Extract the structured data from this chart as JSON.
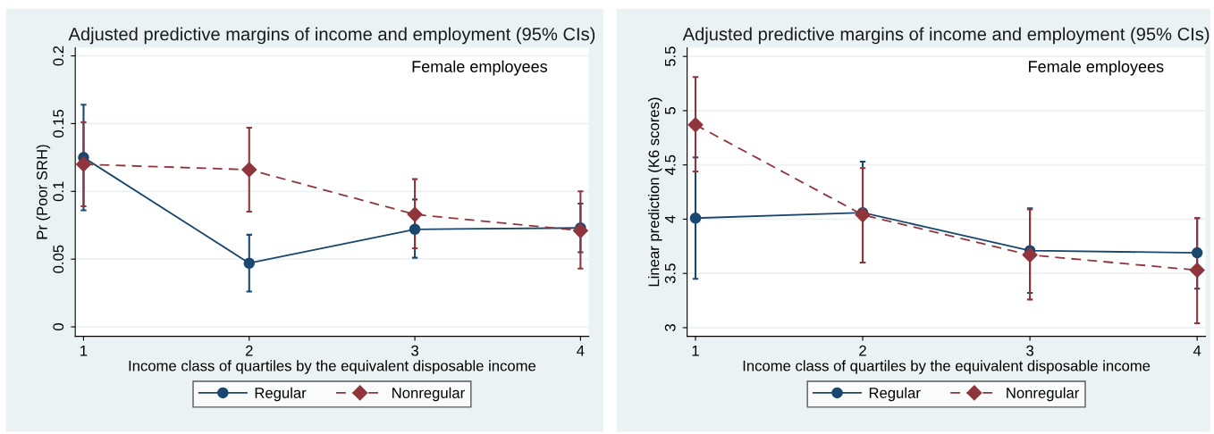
{
  "chart_data": [
    {
      "type": "line",
      "title": "Adjusted predictive margins of income and employment (95% CIs)",
      "xlabel": "Income class of quartiles by the equivalent disposable income",
      "ylabel": "Pr (Poor SRH)",
      "annotations": [
        "Female employees"
      ],
      "x": [
        1,
        2,
        3,
        4
      ],
      "xlim": [
        0.95,
        4.05
      ],
      "xticks": [
        1,
        2,
        3,
        4
      ],
      "ylim": [
        -0.007,
        0.206
      ],
      "yticks": [
        0,
        0.05,
        0.1,
        0.15,
        0.2
      ],
      "grid": "y",
      "legend": "bottom",
      "series": [
        {
          "name": "Regular",
          "color": "#1a476f",
          "marker": "circle",
          "line_style": "solid",
          "values": [
            0.125,
            0.047,
            0.072,
            0.073
          ],
          "errors": [
            [
              0.086,
              0.164
            ],
            [
              0.026,
              0.068
            ],
            [
              0.051,
              0.094
            ],
            [
              0.055,
              0.091
            ]
          ]
        },
        {
          "name": "Nonregular",
          "color": "#90353b",
          "marker": "diamond",
          "line_style": "dashed",
          "values": [
            0.12,
            0.116,
            0.083,
            0.071
          ],
          "errors": [
            [
              0.089,
              0.151
            ],
            [
              0.085,
              0.147
            ],
            [
              0.058,
              0.109
            ],
            [
              0.043,
              0.1
            ]
          ]
        }
      ]
    },
    {
      "type": "line",
      "title": "Adjusted predictive margins of income and employment (95% CIs)",
      "xlabel": "Income class of quartiles by the equivalent disposable income",
      "ylabel": "Linear prediction (K6 scores)",
      "annotations": [
        "Female employees"
      ],
      "x": [
        1,
        2,
        3,
        4
      ],
      "xlim": [
        0.95,
        4.05
      ],
      "xticks": [
        1,
        2,
        3,
        4
      ],
      "ylim": [
        2.92,
        5.58
      ],
      "yticks": [
        3,
        3.5,
        4,
        4.5,
        5,
        5.5
      ],
      "grid": "y",
      "legend": "bottom",
      "series": [
        {
          "name": "Regular",
          "color": "#1a476f",
          "marker": "circle",
          "line_style": "solid",
          "values": [
            4.01,
            4.06,
            3.71,
            3.69
          ],
          "errors": [
            [
              3.45,
              4.57
            ],
            [
              3.6,
              4.53
            ],
            [
              3.32,
              4.1
            ],
            [
              3.36,
              4.01
            ]
          ]
        },
        {
          "name": "Nonregular",
          "color": "#90353b",
          "marker": "diamond",
          "line_style": "dashed",
          "values": [
            4.87,
            4.04,
            3.67,
            3.53
          ],
          "errors": [
            [
              4.44,
              5.31
            ],
            [
              3.6,
              4.47
            ],
            [
              3.26,
              4.09
            ],
            [
              3.04,
              4.01
            ]
          ]
        }
      ]
    }
  ]
}
